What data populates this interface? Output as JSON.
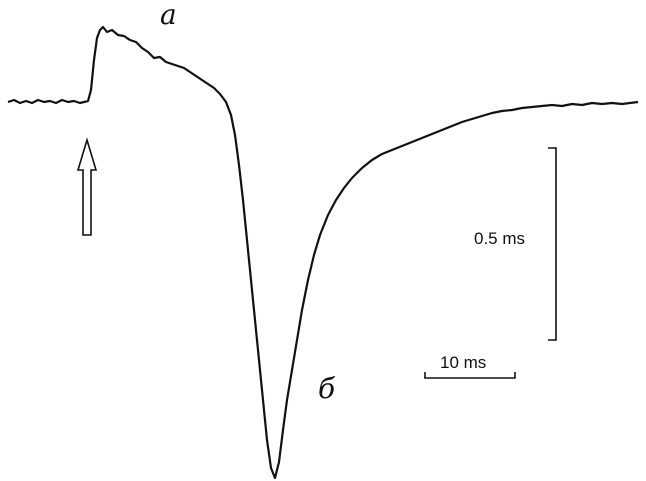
{
  "labels": {
    "peak_a": "a",
    "peak_b": "б"
  },
  "scale_bars": {
    "vertical": "0.5 ms",
    "horizontal": "10 ms"
  }
}
